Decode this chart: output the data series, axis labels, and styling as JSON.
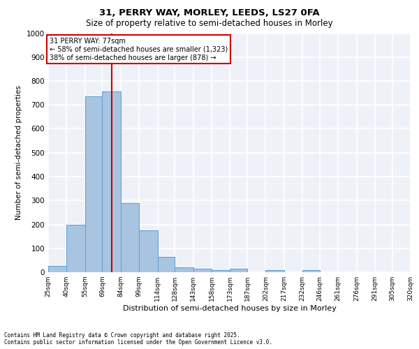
{
  "title_line1": "31, PERRY WAY, MORLEY, LEEDS, LS27 0FA",
  "title_line2": "Size of property relative to semi-detached houses in Morley",
  "xlabel": "Distribution of semi-detached houses by size in Morley",
  "ylabel": "Number of semi-detached properties",
  "bin_labels": [
    "25sqm",
    "40sqm",
    "55sqm",
    "69sqm",
    "84sqm",
    "99sqm",
    "114sqm",
    "128sqm",
    "143sqm",
    "158sqm",
    "173sqm",
    "187sqm",
    "202sqm",
    "217sqm",
    "232sqm",
    "246sqm",
    "261sqm",
    "276sqm",
    "291sqm",
    "305sqm",
    "320sqm"
  ],
  "bin_edges": [
    25,
    40,
    55,
    69,
    84,
    99,
    114,
    128,
    143,
    158,
    173,
    187,
    202,
    217,
    232,
    246,
    261,
    276,
    291,
    305,
    320
  ],
  "bar_values": [
    25,
    200,
    735,
    755,
    290,
    175,
    65,
    20,
    15,
    10,
    15,
    0,
    8,
    0,
    8,
    0,
    0,
    0,
    0,
    0
  ],
  "bar_color": "#a8c4e0",
  "bar_edge_color": "#5a9fd4",
  "vline_x": 77,
  "vline_color": "#cc0000",
  "annotation_title": "31 PERRY WAY: 77sqm",
  "annotation_line1": "← 58% of semi-detached houses are smaller (1,323)",
  "annotation_line2": "38% of semi-detached houses are larger (878) →",
  "annotation_box_color": "#ffffff",
  "annotation_box_edge": "#cc0000",
  "ylim": [
    0,
    1000
  ],
  "yticks": [
    0,
    100,
    200,
    300,
    400,
    500,
    600,
    700,
    800,
    900,
    1000
  ],
  "footer_line1": "Contains HM Land Registry data © Crown copyright and database right 2025.",
  "footer_line2": "Contains public sector information licensed under the Open Government Licence v3.0.",
  "bg_color": "#eef2f8",
  "grid_color": "#ffffff"
}
